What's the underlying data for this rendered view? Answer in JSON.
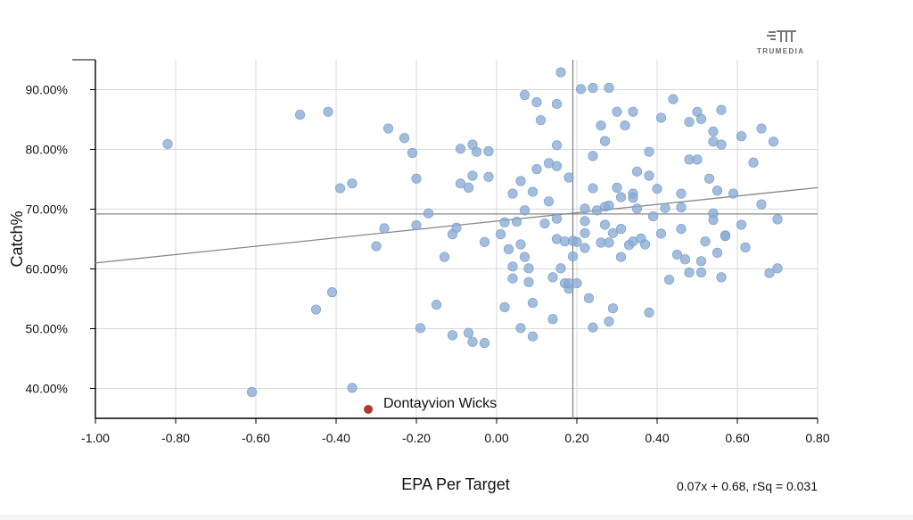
{
  "logo": {
    "text": "TRUMEDIA"
  },
  "chart_data": {
    "type": "scatter",
    "xlabel": "EPA Per Target",
    "ylabel": "Catch%",
    "xlim": [
      -1.0,
      0.8
    ],
    "ylim": [
      35,
      95
    ],
    "xticks": [
      "-1.00",
      "-0.80",
      "-0.60",
      "-0.40",
      "-0.20",
      "0.00",
      "0.20",
      "0.40",
      "0.60",
      "0.80"
    ],
    "yticks": [
      "40.00%",
      "50.00%",
      "60.00%",
      "70.00%",
      "80.00%",
      "90.00%"
    ],
    "grid": true,
    "fit_label": "0.07x + 0.68, rSq = 0.031",
    "fit_line": {
      "slope": 0.07,
      "intercept": 0.68
    },
    "mean_lines": {
      "x": 0.19,
      "y": 69.2
    },
    "colors": {
      "points": "#88aad3",
      "highlight": "#b03a2e",
      "grid": "#d9d9d9",
      "ref_line": "#888888"
    },
    "highlight": {
      "label": "Dontayvion Wicks",
      "x": -0.32,
      "y": 36.5
    },
    "points": [
      [
        -0.82,
        80.9
      ],
      [
        -0.61,
        39.4
      ],
      [
        -0.49,
        85.8
      ],
      [
        -0.45,
        53.2
      ],
      [
        -0.42,
        86.3
      ],
      [
        -0.41,
        56.1
      ],
      [
        -0.39,
        73.5
      ],
      [
        -0.36,
        40.1
      ],
      [
        -0.36,
        74.3
      ],
      [
        -0.3,
        63.8
      ],
      [
        -0.28,
        66.8
      ],
      [
        -0.27,
        83.5
      ],
      [
        -0.23,
        81.9
      ],
      [
        -0.21,
        79.4
      ],
      [
        -0.2,
        75.1
      ],
      [
        -0.2,
        67.3
      ],
      [
        -0.19,
        50.1
      ],
      [
        -0.17,
        69.3
      ],
      [
        -0.15,
        54.0
      ],
      [
        -0.13,
        62.0
      ],
      [
        -0.11,
        48.9
      ],
      [
        -0.11,
        65.8
      ],
      [
        -0.1,
        66.9
      ],
      [
        -0.09,
        80.1
      ],
      [
        -0.09,
        74.3
      ],
      [
        -0.07,
        73.6
      ],
      [
        -0.07,
        49.3
      ],
      [
        -0.06,
        47.8
      ],
      [
        -0.06,
        75.6
      ],
      [
        -0.06,
        80.8
      ],
      [
        -0.05,
        79.6
      ],
      [
        -0.03,
        64.5
      ],
      [
        -0.03,
        47.6
      ],
      [
        -0.02,
        75.4
      ],
      [
        -0.02,
        79.7
      ],
      [
        0.01,
        65.8
      ],
      [
        0.02,
        53.6
      ],
      [
        0.02,
        67.8
      ],
      [
        0.03,
        63.3
      ],
      [
        0.04,
        72.6
      ],
      [
        0.04,
        60.4
      ],
      [
        0.04,
        58.4
      ],
      [
        0.05,
        67.9
      ],
      [
        0.06,
        64.1
      ],
      [
        0.07,
        62.0
      ],
      [
        0.06,
        50.1
      ],
      [
        0.06,
        74.7
      ],
      [
        0.07,
        69.8
      ],
      [
        0.07,
        89.1
      ],
      [
        0.08,
        60.1
      ],
      [
        0.08,
        57.8
      ],
      [
        0.09,
        48.7
      ],
      [
        0.09,
        72.9
      ],
      [
        0.09,
        54.3
      ],
      [
        0.1,
        87.9
      ],
      [
        0.1,
        76.7
      ],
      [
        0.11,
        84.9
      ],
      [
        0.12,
        67.6
      ],
      [
        0.13,
        77.7
      ],
      [
        0.13,
        71.3
      ],
      [
        0.14,
        51.6
      ],
      [
        0.14,
        58.6
      ],
      [
        0.15,
        65.0
      ],
      [
        0.15,
        77.2
      ],
      [
        0.15,
        80.7
      ],
      [
        0.15,
        87.6
      ],
      [
        0.15,
        68.4
      ],
      [
        0.16,
        60.1
      ],
      [
        0.16,
        92.9
      ],
      [
        0.17,
        64.6
      ],
      [
        0.17,
        57.6
      ],
      [
        0.18,
        56.7
      ],
      [
        0.18,
        75.3
      ],
      [
        0.18,
        57.6
      ],
      [
        0.19,
        64.7
      ],
      [
        0.19,
        62.1
      ],
      [
        0.2,
        57.6
      ],
      [
        0.2,
        64.5
      ],
      [
        0.21,
        90.1
      ],
      [
        0.22,
        70.1
      ],
      [
        0.22,
        66.0
      ],
      [
        0.22,
        63.5
      ],
      [
        0.22,
        68.0
      ],
      [
        0.23,
        55.1
      ],
      [
        0.24,
        90.3
      ],
      [
        0.24,
        78.9
      ],
      [
        0.24,
        73.5
      ],
      [
        0.24,
        50.2
      ],
      [
        0.25,
        69.8
      ],
      [
        0.26,
        64.4
      ],
      [
        0.26,
        84.0
      ],
      [
        0.27,
        81.4
      ],
      [
        0.27,
        70.4
      ],
      [
        0.27,
        67.4
      ],
      [
        0.28,
        90.3
      ],
      [
        0.28,
        70.6
      ],
      [
        0.28,
        64.4
      ],
      [
        0.28,
        51.2
      ],
      [
        0.29,
        53.4
      ],
      [
        0.29,
        66.0
      ],
      [
        0.3,
        86.3
      ],
      [
        0.3,
        73.6
      ],
      [
        0.31,
        72.0
      ],
      [
        0.31,
        66.7
      ],
      [
        0.31,
        62.0
      ],
      [
        0.32,
        84.0
      ],
      [
        0.33,
        64.0
      ],
      [
        0.34,
        64.6
      ],
      [
        0.34,
        86.3
      ],
      [
        0.34,
        72.6
      ],
      [
        0.34,
        71.9
      ],
      [
        0.35,
        76.3
      ],
      [
        0.35,
        70.1
      ],
      [
        0.36,
        65.1
      ],
      [
        0.37,
        64.1
      ],
      [
        0.38,
        75.6
      ],
      [
        0.38,
        79.6
      ],
      [
        0.38,
        52.7
      ],
      [
        0.39,
        68.8
      ],
      [
        0.4,
        73.4
      ],
      [
        0.41,
        65.9
      ],
      [
        0.41,
        85.3
      ],
      [
        0.42,
        70.2
      ],
      [
        0.43,
        58.2
      ],
      [
        0.44,
        88.4
      ],
      [
        0.45,
        62.4
      ],
      [
        0.46,
        72.6
      ],
      [
        0.46,
        70.3
      ],
      [
        0.46,
        66.7
      ],
      [
        0.47,
        61.6
      ],
      [
        0.48,
        78.3
      ],
      [
        0.48,
        84.6
      ],
      [
        0.48,
        59.4
      ],
      [
        0.5,
        86.3
      ],
      [
        0.5,
        78.3
      ],
      [
        0.51,
        59.4
      ],
      [
        0.51,
        85.1
      ],
      [
        0.51,
        61.3
      ],
      [
        0.52,
        64.6
      ],
      [
        0.53,
        75.1
      ],
      [
        0.54,
        83.0
      ],
      [
        0.54,
        81.3
      ],
      [
        0.54,
        69.3
      ],
      [
        0.54,
        68.2
      ],
      [
        0.55,
        73.1
      ],
      [
        0.55,
        62.7
      ],
      [
        0.56,
        58.6
      ],
      [
        0.56,
        86.6
      ],
      [
        0.56,
        80.8
      ],
      [
        0.57,
        65.6
      ],
      [
        0.57,
        65.5
      ],
      [
        0.59,
        72.6
      ],
      [
        0.61,
        67.4
      ],
      [
        0.61,
        82.2
      ],
      [
        0.62,
        63.6
      ],
      [
        0.64,
        77.8
      ],
      [
        0.66,
        83.5
      ],
      [
        0.66,
        70.8
      ],
      [
        0.68,
        59.3
      ],
      [
        0.69,
        81.3
      ],
      [
        0.7,
        68.3
      ],
      [
        0.7,
        60.1
      ]
    ]
  }
}
